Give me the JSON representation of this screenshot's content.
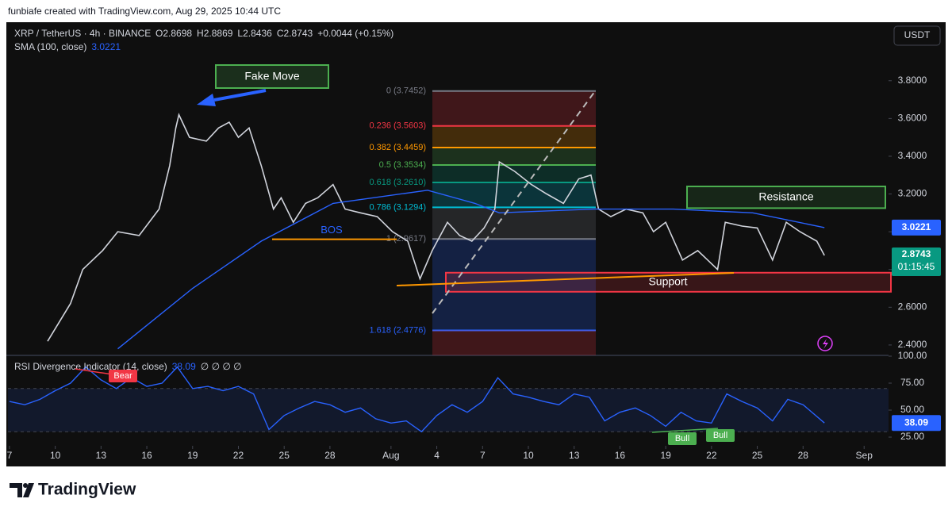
{
  "header": {
    "credit": "funbiafe created with TradingView.com, Aug 29, 2025 10:44 UTC",
    "brand": "TradingView"
  },
  "chart_data": [
    {
      "type": "line",
      "ohlc": [
        "O2.8698",
        "H2.8869",
        "L2.8436",
        "C2.8743",
        "+0.0044 (+0.15%)"
      ],
      "currency": "USDT",
      "series": [
        {
          "name": "XRP / TetherUS · 4h · BINANCE",
          "color": "#d1d4dc",
          "x": [
            2.5,
            4,
            4.8,
            6.1,
            7.1,
            8.5,
            9.8,
            10.5,
            10.9,
            11.1,
            11.8,
            12.9,
            13.7,
            14.4,
            15,
            15.7,
            16.5,
            17.3,
            17.8,
            18.6,
            19.4,
            20.2,
            21.2,
            22,
            23,
            24.1,
            25.1,
            26.1,
            26.9,
            27.7,
            28.7,
            29.5,
            30.3,
            31.1,
            31.8,
            32.1,
            33.1,
            34.2,
            35.2,
            36.3,
            37.3,
            38.1,
            38.6,
            39.4,
            40.4,
            41.5,
            42.2,
            43,
            44.1,
            45.1,
            46.4,
            46.9,
            48,
            49,
            50,
            50.9,
            51.8,
            52.9,
            53.4
          ],
          "values": [
            2.42,
            2.62,
            2.8,
            2.9,
            3.0,
            2.98,
            3.12,
            3.35,
            3.55,
            3.62,
            3.5,
            3.48,
            3.55,
            3.58,
            3.5,
            3.55,
            3.35,
            3.12,
            3.18,
            3.05,
            3.15,
            3.18,
            3.25,
            3.12,
            3.1,
            3.08,
            3.0,
            2.95,
            2.75,
            2.9,
            3.05,
            2.98,
            2.95,
            3.02,
            3.12,
            3.37,
            3.32,
            3.25,
            3.2,
            3.15,
            3.28,
            3.3,
            3.12,
            3.08,
            3.12,
            3.1,
            3.0,
            3.05,
            2.85,
            2.9,
            2.8,
            3.05,
            3.03,
            3.02,
            2.85,
            3.05,
            3.0,
            2.95,
            2.8743
          ]
        },
        {
          "name": "SMA (100, close)",
          "color": "#2962ff",
          "x": [
            7.1,
            12,
            16.5,
            21.2,
            27.4,
            30.5,
            32.1,
            38.3,
            43.5,
            48.7,
            53.4
          ],
          "values": [
            2.38,
            2.7,
            2.95,
            3.15,
            3.22,
            3.15,
            3.1,
            3.12,
            3.12,
            3.1,
            3.0221
          ]
        }
      ],
      "sma_last": 3.0221,
      "last_price": 2.8743,
      "countdown": "01:15:45",
      "fib": [
        {
          "label": "0 (3.7452)",
          "value": 3.7452,
          "color": "#787b86"
        },
        {
          "label": "0.236 (3.5603)",
          "value": 3.5603,
          "color": "#f23645"
        },
        {
          "label": "0.382 (3.4459)",
          "value": 3.4459,
          "color": "#ff9800"
        },
        {
          "label": "0.5 (3.3534)",
          "value": 3.3534,
          "color": "#4caf50"
        },
        {
          "label": "0.618 (3.2610)",
          "value": 3.261,
          "color": "#089981"
        },
        {
          "label": "0.786 (3.1294)",
          "value": 3.1294,
          "color": "#00bcd4"
        },
        {
          "label": "1 (2.9617)",
          "value": 2.9617,
          "color": "#787b86"
        },
        {
          "label": "1.618 (2.4776)",
          "value": 2.4776,
          "color": "#2962ff"
        }
      ],
      "annotations": {
        "fake_move": "Fake Move",
        "bos": "BOS",
        "resistance": "Resistance",
        "support": "Support"
      },
      "resistance_zone": [
        3.125,
        3.24
      ],
      "support_zone": [
        2.682,
        2.783
      ],
      "bos_level": 2.96,
      "xlim": [
        -0.1,
        57.6
      ],
      "xticks": [
        {
          "value": 0,
          "label": "7"
        },
        {
          "value": 3,
          "label": "10"
        },
        {
          "value": 6,
          "label": "13"
        },
        {
          "value": 9,
          "label": "16"
        },
        {
          "value": 12,
          "label": "19"
        },
        {
          "value": 15,
          "label": "22"
        },
        {
          "value": 18,
          "label": "25"
        },
        {
          "value": 21,
          "label": "28"
        },
        {
          "value": 25,
          "label": "Aug"
        },
        {
          "value": 28,
          "label": "4"
        },
        {
          "value": 31,
          "label": "7"
        },
        {
          "value": 34,
          "label": "10"
        },
        {
          "value": 37,
          "label": "13"
        },
        {
          "value": 40,
          "label": "16"
        },
        {
          "value": 43,
          "label": "19"
        },
        {
          "value": 46,
          "label": "22"
        },
        {
          "value": 49,
          "label": "25"
        },
        {
          "value": 52,
          "label": "28"
        },
        {
          "value": 56,
          "label": "Sep"
        }
      ],
      "ylim": [
        2.345,
        4.11
      ],
      "yticks": [
        {
          "value": 2.4,
          "label": "2.4000"
        },
        {
          "value": 2.6,
          "label": "2.6000"
        },
        {
          "value": 2.8,
          "label": "2.8000"
        },
        {
          "value": 3.0,
          "label": "3.0000"
        },
        {
          "value": 3.2,
          "label": "3.2000"
        },
        {
          "value": 3.4,
          "label": "3.4000"
        },
        {
          "value": 3.6,
          "label": "3.6000"
        },
        {
          "value": 3.8,
          "label": "3.8000"
        }
      ]
    },
    {
      "type": "line",
      "title": "RSI Divergence Indicator (14, close)",
      "flags": "∅ ∅ ∅ ∅",
      "last_value": 38.09,
      "signals": [
        "Bear",
        "Bull",
        "Bull"
      ],
      "band": [
        30,
        70
      ],
      "series": [
        {
          "name": "RSI",
          "color": "#2962ff",
          "x": [
            0,
            1,
            2,
            3,
            4,
            5,
            6,
            7,
            8,
            9,
            10,
            11,
            12,
            13,
            14,
            15,
            16,
            17,
            18,
            19,
            20,
            21,
            22,
            23,
            24,
            25,
            26,
            27,
            28,
            29,
            30,
            31,
            32,
            33,
            34,
            35,
            36,
            37,
            38,
            39,
            40,
            41,
            42,
            43,
            44,
            45,
            46,
            47,
            48,
            49,
            50,
            51,
            52,
            53.4
          ],
          "values": [
            58,
            55,
            60,
            68,
            75,
            90,
            78,
            70,
            80,
            72,
            75,
            90,
            70,
            72,
            68,
            72,
            65,
            32,
            45,
            52,
            58,
            55,
            48,
            52,
            42,
            38,
            40,
            30,
            45,
            55,
            48,
            58,
            80,
            65,
            62,
            58,
            55,
            65,
            62,
            40,
            48,
            52,
            45,
            35,
            48,
            40,
            38,
            65,
            58,
            52,
            40,
            60,
            55,
            38.09
          ]
        }
      ],
      "ylim": [
        18.4,
        100
      ],
      "yticks": [
        {
          "value": 25,
          "label": "25.00"
        },
        {
          "value": 50,
          "label": "50.00"
        },
        {
          "value": 75,
          "label": "75.00"
        },
        {
          "value": 100,
          "label": "100.00"
        }
      ]
    }
  ]
}
